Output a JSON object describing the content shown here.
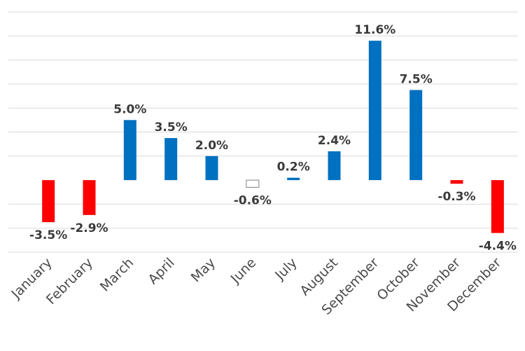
{
  "chart_data": {
    "type": "bar",
    "title": "",
    "xlabel": "",
    "ylabel": "",
    "categories": [
      "January",
      "February",
      "March",
      "April",
      "May",
      "June",
      "July",
      "August",
      "September",
      "October",
      "November",
      "December"
    ],
    "values": [
      -3.5,
      -2.9,
      5.0,
      3.5,
      2.0,
      -0.6,
      0.2,
      2.4,
      11.6,
      7.5,
      -0.3,
      -4.4
    ],
    "data_labels": [
      "-3.5%",
      "-2.9%",
      "5.0%",
      "3.5%",
      "2.0%",
      "-0.6%",
      "0.2%",
      "2.4%",
      "11.6%",
      "7.5%",
      "-0.3%",
      "-4.4%"
    ],
    "bar_styles": [
      "negative",
      "negative",
      "positive",
      "positive",
      "positive",
      "outline",
      "positive",
      "positive",
      "positive",
      "positive",
      "negative",
      "negative"
    ],
    "colors": {
      "positive": "#0070c0",
      "negative": "#ff0000",
      "outline": "#ffffff",
      "outline_stroke": "#7f7f7f",
      "grid": "#d9d9d9"
    },
    "ylim": [
      -6,
      14
    ],
    "y_grid_step": 2,
    "grid": true,
    "legend": "none"
  }
}
